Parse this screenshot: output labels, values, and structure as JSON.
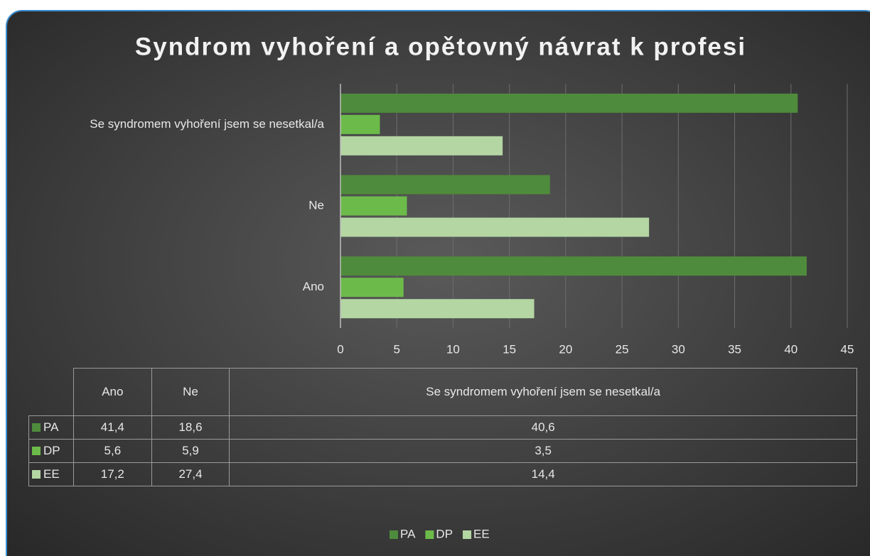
{
  "chart_data": {
    "type": "bar",
    "orientation": "horizontal",
    "title": "Syndrom vyhoření a opětovný návrat k profesi",
    "categories": [
      "Ano",
      "Ne",
      "Se syndromem vyhoření jsem se nesetkal/a"
    ],
    "series": [
      {
        "name": "PA",
        "color": "#4f8b3c",
        "values": [
          41.4,
          18.6,
          40.6
        ],
        "value_labels": [
          "41,4",
          "18,6",
          "40,6"
        ]
      },
      {
        "name": "DP",
        "color": "#6cbb4a",
        "values": [
          5.6,
          5.9,
          3.5
        ],
        "value_labels": [
          "5,6",
          "5,9",
          "3,5"
        ]
      },
      {
        "name": "EE",
        "color": "#b4d6a3",
        "values": [
          17.2,
          27.4,
          14.4
        ],
        "value_labels": [
          "17,2",
          "27,4",
          "14,4"
        ]
      }
    ],
    "xlim": [
      0,
      45
    ],
    "xticks": [
      0,
      5,
      10,
      15,
      20,
      25,
      30,
      35,
      40,
      45
    ],
    "grid": true
  }
}
